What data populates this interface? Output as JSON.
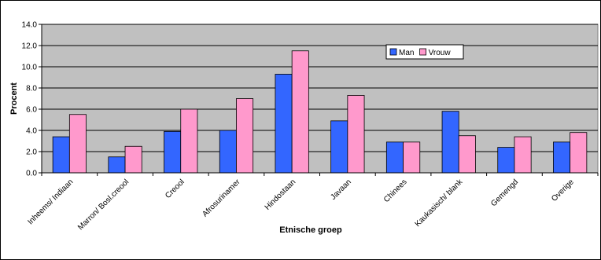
{
  "chart_data": {
    "type": "bar",
    "title": "",
    "xlabel": "Etnische groep",
    "ylabel": "Procent",
    "ylim": [
      0,
      14
    ],
    "yticks": [
      "0.0",
      "2.0",
      "4.0",
      "6.0",
      "8.0",
      "10.0",
      "12.0",
      "14.0"
    ],
    "grid": true,
    "legend_position": "top-right",
    "categories": [
      "Inheems/ Indiaan",
      "Marron/ Bosl.creool",
      "Creool",
      "Afrosurinamer",
      "Hindostaan",
      "Javaan",
      "Chinees",
      "Kaukasisch/ blank",
      "Gemengd",
      "Overige"
    ],
    "series": [
      {
        "name": "Man",
        "color": "#3366ff",
        "values": [
          3.4,
          1.5,
          3.9,
          4.0,
          9.3,
          4.9,
          2.9,
          5.8,
          2.4,
          2.9
        ]
      },
      {
        "name": "Vrouw",
        "color": "#ff99cc",
        "values": [
          5.5,
          2.5,
          6.0,
          7.0,
          11.5,
          7.3,
          2.9,
          3.5,
          3.4,
          3.8
        ]
      }
    ],
    "plot_background": "#c0c0c0"
  }
}
